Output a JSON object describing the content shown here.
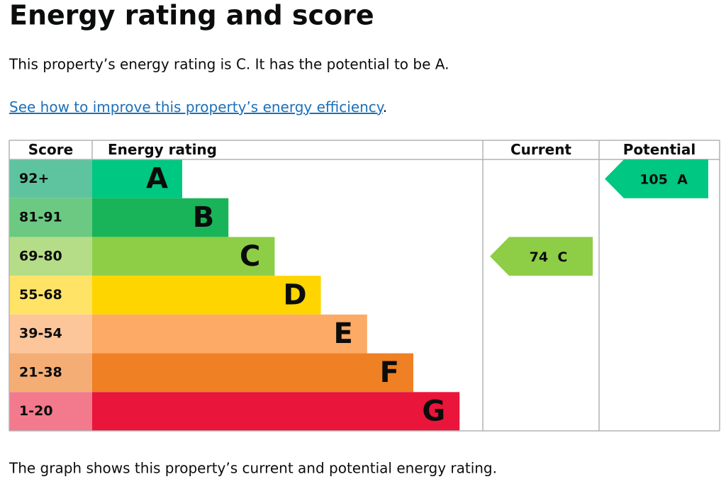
{
  "title": "Energy rating and score",
  "intro": "This property’s energy rating is C. It has the potential to be A.",
  "link": {
    "text": "See how to improve this property’s energy efficiency",
    "after": "."
  },
  "table": {
    "headers": [
      "Score",
      "Energy rating",
      "Current",
      "Potential"
    ],
    "bands": [
      {
        "range": "92+",
        "rating": "A",
        "score_color": "#5ec4a0",
        "bar_color": "#00c781"
      },
      {
        "range": "81-91",
        "rating": "B",
        "score_color": "#6cc982",
        "bar_color": "#19b459"
      },
      {
        "range": "69-80",
        "rating": "C",
        "score_color": "#b5dd88",
        "bar_color": "#8dce46"
      },
      {
        "range": "55-68",
        "rating": "D",
        "score_color": "#ffe366",
        "bar_color": "#ffd500"
      },
      {
        "range": "39-54",
        "rating": "E",
        "score_color": "#fdc59a",
        "bar_color": "#fcaa65"
      },
      {
        "range": "21-38",
        "rating": "F",
        "score_color": "#f4ad74",
        "bar_color": "#ef8023"
      },
      {
        "range": "1-20",
        "rating": "G",
        "score_color": "#f27a8c",
        "bar_color": "#e9153b"
      }
    ],
    "current": {
      "score": 74,
      "rating": "C"
    },
    "potential": {
      "score": 105,
      "rating": "A"
    }
  },
  "footer": "The graph shows this property’s current and potential energy rating."
}
